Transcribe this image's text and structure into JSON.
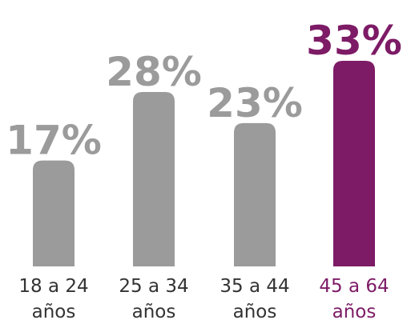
{
  "chart_data": {
    "type": "bar",
    "categories": [
      "18 a 24 años",
      "25 a 34 años",
      "35 a 44 años",
      "45 a 64 años"
    ],
    "values": [
      17,
      28,
      23,
      33
    ],
    "value_labels": [
      "17%",
      "28%",
      "23%",
      "33%"
    ],
    "colors": [
      "#9b9b9b",
      "#9b9b9b",
      "#9b9b9b",
      "#7d1b66"
    ],
    "highlight": 3
  }
}
